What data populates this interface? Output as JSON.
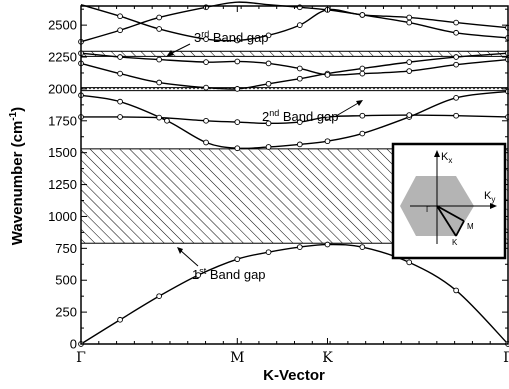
{
  "chart_data": {
    "type": "line",
    "xlabel": "K-Vector",
    "ylabel": "Wavenumber (cm",
    "ylabel_sup": "-1",
    "ylabel_end": ")",
    "ylim": [
      0,
      2650
    ],
    "yticks": [
      0,
      250,
      500,
      750,
      1000,
      1250,
      1500,
      1750,
      2000,
      2250,
      2500
    ],
    "xticks": [
      {
        "label": "Γ",
        "k": 0.0
      },
      {
        "label": "M",
        "k": 1.0
      },
      {
        "label": "K",
        "k": 1.577
      },
      {
        "label": "Γ",
        "k": 2.732
      }
    ],
    "x_range": [
      0,
      2.732
    ],
    "grid": false,
    "series": [
      {
        "values": [
          [
            0.0,
            0
          ],
          [
            0.25,
            190
          ],
          [
            0.5,
            375
          ],
          [
            0.75,
            540
          ],
          [
            1.0,
            665
          ],
          [
            1.2,
            720
          ],
          [
            1.4,
            760
          ],
          [
            1.577,
            780
          ],
          [
            1.8,
            760
          ],
          [
            2.1,
            640
          ],
          [
            2.4,
            420
          ],
          [
            2.732,
            0
          ]
        ]
      },
      {
        "values": [
          [
            0.0,
            1950
          ],
          [
            0.25,
            1900
          ],
          [
            0.55,
            1750
          ],
          [
            0.8,
            1580
          ],
          [
            1.0,
            1535
          ],
          [
            1.2,
            1545
          ],
          [
            1.4,
            1565
          ],
          [
            1.577,
            1590
          ],
          [
            1.8,
            1650
          ],
          [
            2.1,
            1780
          ],
          [
            2.4,
            1930
          ],
          [
            2.732,
            1980
          ]
        ]
      },
      {
        "values": [
          [
            0.0,
            1780
          ],
          [
            0.25,
            1780
          ],
          [
            0.5,
            1775
          ],
          [
            0.8,
            1750
          ],
          [
            1.0,
            1740
          ],
          [
            1.2,
            1730
          ],
          [
            1.4,
            1740
          ],
          [
            1.577,
            1780
          ],
          [
            1.8,
            1790
          ],
          [
            2.1,
            1795
          ],
          [
            2.4,
            1790
          ],
          [
            2.732,
            1780
          ]
        ]
      },
      {
        "values": [
          [
            0.0,
            2200
          ],
          [
            0.25,
            2120
          ],
          [
            0.5,
            2050
          ],
          [
            0.8,
            2010
          ],
          [
            1.0,
            2000
          ],
          [
            1.2,
            2040
          ],
          [
            1.4,
            2080
          ],
          [
            1.577,
            2120
          ],
          [
            1.8,
            2160
          ],
          [
            2.1,
            2210
          ],
          [
            2.4,
            2250
          ],
          [
            2.732,
            2280
          ]
        ]
      },
      {
        "values": [
          [
            0.0,
            2280
          ],
          [
            0.25,
            2250
          ],
          [
            0.5,
            2230
          ],
          [
            0.8,
            2210
          ],
          [
            1.0,
            2215
          ],
          [
            1.2,
            2200
          ],
          [
            1.4,
            2160
          ],
          [
            1.577,
            2110
          ],
          [
            1.8,
            2120
          ],
          [
            2.1,
            2140
          ],
          [
            2.4,
            2190
          ],
          [
            2.732,
            2230
          ]
        ]
      },
      {
        "values": [
          [
            0.0,
            2370
          ],
          [
            0.25,
            2460
          ],
          [
            0.5,
            2560
          ],
          [
            0.8,
            2640
          ],
          [
            1.0,
            2680
          ],
          [
            1.2,
            2660
          ],
          [
            1.4,
            2640
          ],
          [
            1.577,
            2620
          ],
          [
            1.8,
            2580
          ],
          [
            2.1,
            2520
          ],
          [
            2.4,
            2440
          ],
          [
            2.732,
            2400
          ]
        ]
      },
      {
        "values": [
          [
            0.0,
            2660
          ],
          [
            0.25,
            2570
          ],
          [
            0.5,
            2470
          ],
          [
            0.8,
            2390
          ],
          [
            1.0,
            2380
          ],
          [
            1.2,
            2420
          ],
          [
            1.4,
            2500
          ],
          [
            1.577,
            2620
          ],
          [
            1.8,
            2580
          ],
          [
            2.1,
            2560
          ],
          [
            2.4,
            2520
          ],
          [
            2.732,
            2480
          ]
        ]
      }
    ],
    "band_gaps": [
      {
        "label": "1",
        "label_sup": "st",
        "label_rest": " Band gap",
        "y_range": [
          790,
          1530
        ]
      },
      {
        "label": "2",
        "label_sup": "nd",
        "label_rest": " Band gap",
        "y_range": [
          1990,
          2010
        ]
      },
      {
        "label": "3",
        "label_sup": "rd",
        "label_rest": " Band gap",
        "y_range": [
          2255,
          2295
        ]
      }
    ],
    "inset": {
      "labels": {
        "kx": "K",
        "kx_sub": "x",
        "ky": "K",
        "ky_sub": "y",
        "gamma": "Γ",
        "m": "M",
        "k": "K"
      },
      "fill_color": "#b4b4b4"
    },
    "colors": {
      "line": "#000000",
      "marker_fill": "#ffffff",
      "hatch": "#000000"
    }
  }
}
